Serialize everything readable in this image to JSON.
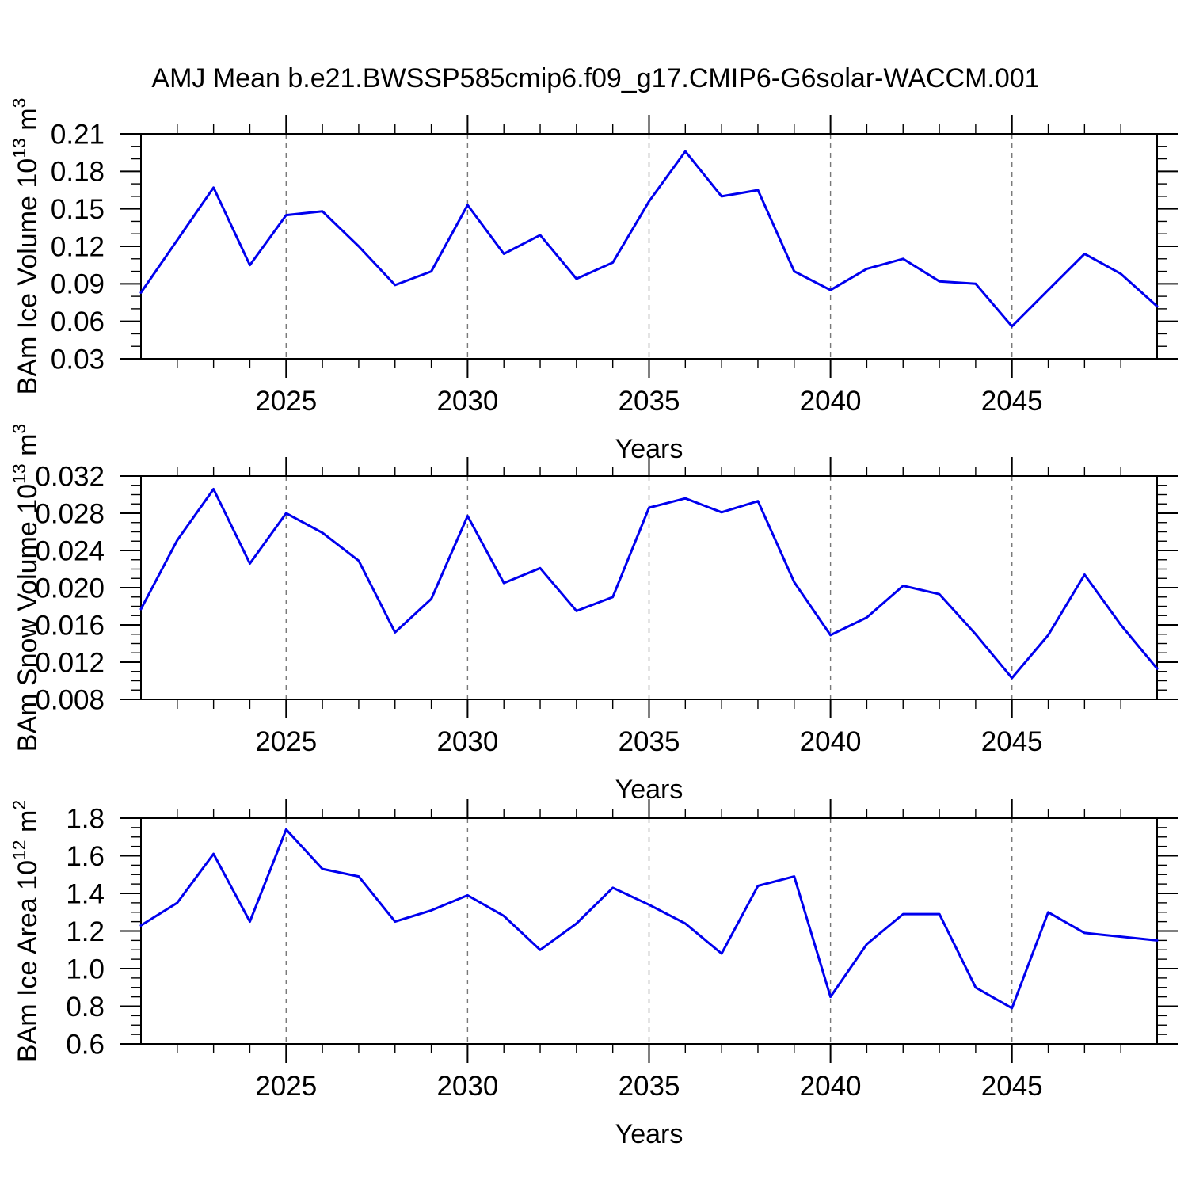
{
  "title": "AMJ Mean b.e21.BWSSP585cmip6.f09_g17.CMIP6-G6solar-WACCM.001",
  "colors": {
    "line": "#0000ee",
    "grid": "#787878",
    "frame": "#000000",
    "background": "#ffffff"
  },
  "chart_data": [
    {
      "type": "line",
      "name": "ice-volume",
      "ylabel_plain": "BAm Ice Volume 10^13 m^3",
      "ylabel_parts": [
        {
          "t": "BAm Ice Volume 10"
        },
        {
          "t": "13",
          "sup": true
        },
        {
          "t": " m"
        },
        {
          "t": "3",
          "sup": true
        }
      ],
      "xlabel": "Years",
      "xlim": [
        2021,
        2049
      ],
      "ylim": [
        0.03,
        0.21
      ],
      "x": [
        2021,
        2022,
        2023,
        2024,
        2025,
        2026,
        2027,
        2028,
        2029,
        2030,
        2031,
        2032,
        2033,
        2034,
        2035,
        2036,
        2037,
        2038,
        2039,
        2040,
        2041,
        2042,
        2043,
        2044,
        2045,
        2046,
        2047,
        2048,
        2049
      ],
      "values": [
        0.083,
        0.125,
        0.167,
        0.105,
        0.145,
        0.148,
        0.12,
        0.089,
        0.1,
        0.153,
        0.114,
        0.129,
        0.094,
        0.107,
        0.156,
        0.196,
        0.16,
        0.165,
        0.1,
        0.085,
        0.102,
        0.11,
        0.092,
        0.09,
        0.056,
        0.085,
        0.114,
        0.098,
        0.072
      ],
      "yticks": [
        0.03,
        0.06,
        0.09,
        0.12,
        0.15,
        0.18,
        0.21
      ],
      "ytick_labels": [
        "0.03",
        "0.06",
        "0.09",
        "0.12",
        "0.15",
        "0.18",
        "0.21"
      ],
      "y_minor_step": 0.01,
      "xticks": [
        2025,
        2030,
        2035,
        2040,
        2045
      ],
      "xtick_labels": [
        "2025",
        "2030",
        "2035",
        "2040",
        "2045"
      ],
      "x_minor_step": 1,
      "grid_on_xticks": true
    },
    {
      "type": "line",
      "name": "snow-volume",
      "ylabel_plain": "BAm Snow Volume 10^13 m^3",
      "ylabel_parts": [
        {
          "t": "BAm Snow Volume 10"
        },
        {
          "t": "13",
          "sup": true
        },
        {
          "t": " m"
        },
        {
          "t": "3",
          "sup": true
        }
      ],
      "xlabel": "Years",
      "xlim": [
        2021,
        2049
      ],
      "ylim": [
        0.008,
        0.032
      ],
      "x": [
        2021,
        2022,
        2023,
        2024,
        2025,
        2026,
        2027,
        2028,
        2029,
        2030,
        2031,
        2032,
        2033,
        2034,
        2035,
        2036,
        2037,
        2038,
        2039,
        2040,
        2041,
        2042,
        2043,
        2044,
        2045,
        2046,
        2047,
        2048,
        2049
      ],
      "values": [
        0.0177,
        0.0251,
        0.0306,
        0.0226,
        0.028,
        0.0259,
        0.0229,
        0.0152,
        0.0188,
        0.0277,
        0.0205,
        0.0221,
        0.0175,
        0.019,
        0.0286,
        0.0296,
        0.0281,
        0.0293,
        0.0206,
        0.0149,
        0.0168,
        0.0202,
        0.0193,
        0.015,
        0.0103,
        0.0149,
        0.0214,
        0.016,
        0.0113
      ],
      "yticks": [
        0.008,
        0.012,
        0.016,
        0.02,
        0.024,
        0.028,
        0.032
      ],
      "ytick_labels": [
        "0.008",
        "0.012",
        "0.016",
        "0.020",
        "0.024",
        "0.028",
        "0.032"
      ],
      "y_minor_step": 0.001,
      "xticks": [
        2025,
        2030,
        2035,
        2040,
        2045
      ],
      "xtick_labels": [
        "2025",
        "2030",
        "2035",
        "2040",
        "2045"
      ],
      "x_minor_step": 1,
      "grid_on_xticks": true
    },
    {
      "type": "line",
      "name": "ice-area",
      "ylabel_plain": "BAm Ice Area 10^12 m^2",
      "ylabel_parts": [
        {
          "t": "BAm Ice Area 10"
        },
        {
          "t": "12",
          "sup": true
        },
        {
          "t": " m"
        },
        {
          "t": "2",
          "sup": true
        }
      ],
      "xlabel": "Years",
      "xlim": [
        2021,
        2049
      ],
      "ylim": [
        0.6,
        1.8
      ],
      "x": [
        2021,
        2022,
        2023,
        2024,
        2025,
        2026,
        2027,
        2028,
        2029,
        2030,
        2031,
        2032,
        2033,
        2034,
        2035,
        2036,
        2037,
        2038,
        2039,
        2040,
        2041,
        2042,
        2043,
        2044,
        2045,
        2046,
        2047,
        2048,
        2049
      ],
      "values": [
        1.23,
        1.35,
        1.61,
        1.25,
        1.74,
        1.53,
        1.49,
        1.25,
        1.31,
        1.39,
        1.28,
        1.1,
        1.24,
        1.43,
        1.34,
        1.24,
        1.08,
        1.44,
        1.49,
        0.85,
        1.13,
        1.29,
        1.29,
        0.9,
        0.79,
        1.3,
        1.19,
        1.17,
        1.15
      ],
      "yticks": [
        0.6,
        0.8,
        1.0,
        1.2,
        1.4,
        1.6,
        1.8
      ],
      "ytick_labels": [
        "0.6",
        "0.8",
        "1.0",
        "1.2",
        "1.4",
        "1.6",
        "1.8"
      ],
      "y_minor_step": 0.05,
      "xticks": [
        2025,
        2030,
        2035,
        2040,
        2045
      ],
      "xtick_labels": [
        "2025",
        "2030",
        "2035",
        "2040",
        "2045"
      ],
      "x_minor_step": 1,
      "grid_on_xticks": true
    }
  ]
}
